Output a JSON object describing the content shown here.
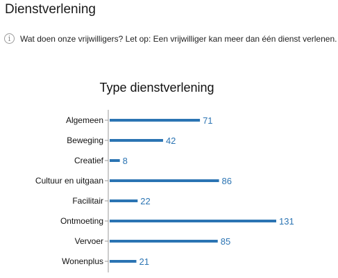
{
  "page": {
    "heading": "Dienstverlening",
    "info_icon": "info-circle-icon",
    "info_icon_glyph": "i",
    "info_text": "Wat doen onze vrijwilligers? Let op: Een vrijwilliger kan meer dan één dienst verlenen."
  },
  "chart_data": {
    "type": "bar",
    "orientation": "horizontal",
    "title": "Type dienstverlening",
    "categories": [
      "Algemeen",
      "Beweging",
      "Creatief",
      "Cultuur en uitgaan",
      "Facilitair",
      "Ontmoeting",
      "Vervoer",
      "Wonenplus"
    ],
    "values": [
      71,
      42,
      8,
      86,
      22,
      131,
      85,
      21
    ],
    "xlim": [
      0,
      131
    ],
    "grid": false,
    "legend": "none",
    "data_labels": true,
    "bar_color": "#2b74b3",
    "label_color": "#2b74b3"
  }
}
